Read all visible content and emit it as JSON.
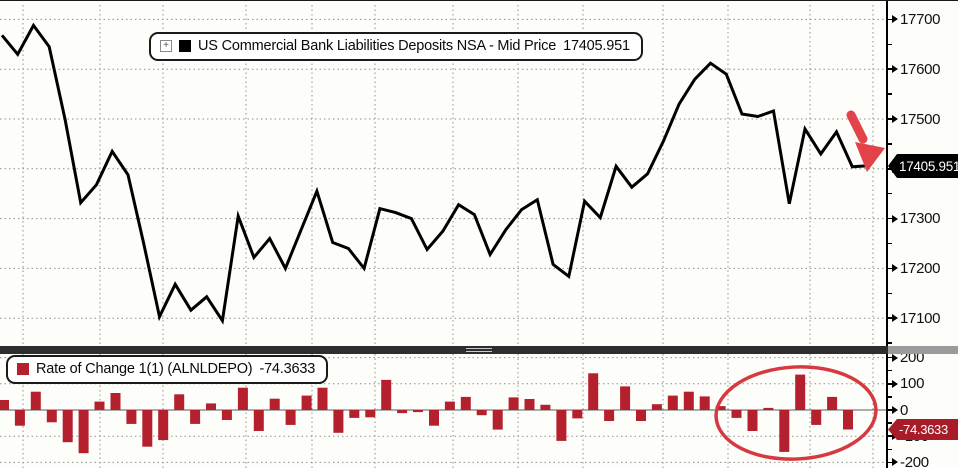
{
  "chart_data": [
    {
      "type": "line",
      "title": "US Commercial Bank Liabilities Deposits NSA - Mid Price",
      "legend": {
        "expand_icon": "expand-toggle",
        "swatch_color": "#000000",
        "label": "US Commercial Bank Liabilities Deposits NSA - Mid Price",
        "value": "17405.951"
      },
      "line_color": "#000000",
      "last_value": 17405.951,
      "badge": {
        "label": "17405.951",
        "bg": "#000000",
        "fg": "#ffffff"
      },
      "yticks": [
        17700,
        17600,
        17500,
        17400,
        17300,
        17200,
        17100
      ],
      "ylim": [
        17040,
        17735
      ],
      "grid": true,
      "legend_position": "top-left-inset",
      "values": [
        17668,
        17630,
        17688,
        17645,
        17500,
        17332,
        17368,
        17435,
        17388,
        17250,
        17103,
        17168,
        17116,
        17143,
        17095,
        17305,
        17222,
        17260,
        17200,
        17278,
        17355,
        17252,
        17240,
        17200,
        17320,
        17312,
        17300,
        17238,
        17275,
        17328,
        17308,
        17228,
        17278,
        17318,
        17338,
        17208,
        17184,
        17335,
        17302,
        17405,
        17363,
        17390,
        17455,
        17530,
        17580,
        17612,
        17590,
        17510,
        17505,
        17516,
        17330,
        17480,
        17430,
        17474,
        17404,
        17406
      ]
    },
    {
      "type": "bar",
      "title": "Rate of Change 1(1) (ALNLDEPO)",
      "legend": {
        "swatch_color": "#b5202e",
        "label": "Rate of Change 1(1) (ALNLDEPO)",
        "value": "-74.3633"
      },
      "bar_color": "#b5202e",
      "last_value": -74.3633,
      "badge": {
        "label": "-74.3633",
        "bg": "#a81c29",
        "fg": "#ffffff"
      },
      "yticks": [
        200,
        100,
        0,
        -100,
        -200
      ],
      "ylim": [
        -215,
        215
      ],
      "grid": true,
      "values": [
        38,
        -60,
        70,
        -47,
        -123,
        -165,
        32,
        65,
        -53,
        -140,
        -115,
        60,
        -53,
        25,
        -38,
        85,
        -80,
        43,
        -57,
        55,
        85,
        -87,
        -30,
        -28,
        115,
        -12,
        -8,
        -60,
        32,
        50,
        -20,
        -75,
        48,
        42,
        20,
        -118,
        -32,
        140,
        -42,
        90,
        -42,
        22,
        55,
        70,
        52,
        15,
        -30,
        -80,
        8,
        -160,
        135,
        -57,
        50,
        -74.3633
      ]
    }
  ],
  "annotations": {
    "arrow_color": "#e2434b",
    "ellipse_color": "#d63940"
  },
  "axis": {
    "line_color": "#000000",
    "label_color": "#101010"
  }
}
